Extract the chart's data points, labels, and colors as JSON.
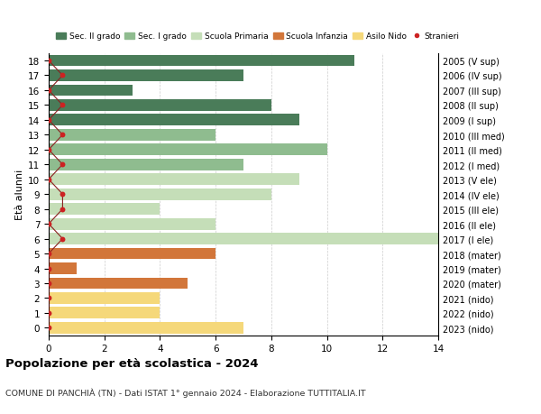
{
  "ages": [
    18,
    17,
    16,
    15,
    14,
    13,
    12,
    11,
    10,
    9,
    8,
    7,
    6,
    5,
    4,
    3,
    2,
    1,
    0
  ],
  "right_labels": [
    "2005 (V sup)",
    "2006 (IV sup)",
    "2007 (III sup)",
    "2008 (II sup)",
    "2009 (I sup)",
    "2010 (III med)",
    "2011 (II med)",
    "2012 (I med)",
    "2013 (V ele)",
    "2014 (IV ele)",
    "2015 (III ele)",
    "2016 (II ele)",
    "2017 (I ele)",
    "2018 (mater)",
    "2019 (mater)",
    "2020 (mater)",
    "2021 (nido)",
    "2022 (nido)",
    "2023 (nido)"
  ],
  "bar_values": [
    11,
    7,
    3,
    8,
    9,
    6,
    10,
    7,
    9,
    8,
    4,
    6,
    14,
    6,
    1,
    5,
    4,
    4,
    7
  ],
  "bar_colors": [
    "#4a7c59",
    "#4a7c59",
    "#4a7c59",
    "#4a7c59",
    "#4a7c59",
    "#8fbc8f",
    "#8fbc8f",
    "#8fbc8f",
    "#c5deb8",
    "#c5deb8",
    "#c5deb8",
    "#c5deb8",
    "#c5deb8",
    "#d2763a",
    "#d2763a",
    "#d2763a",
    "#f5d87a",
    "#f5d87a",
    "#f5d87a"
  ],
  "stranieri_x": [
    0.0,
    0.5,
    0.0,
    0.5,
    0.0,
    0.5,
    0.0,
    0.5,
    0.0,
    0.5,
    0.5,
    0.0,
    0.5,
    0.0,
    0.0,
    0.0,
    0.0,
    0.0,
    0.0
  ],
  "legend_labels": [
    "Sec. II grado",
    "Sec. I grado",
    "Scuola Primaria",
    "Scuola Infanzia",
    "Asilo Nido",
    "Stranieri"
  ],
  "legend_colors": [
    "#4a7c59",
    "#8fbc8f",
    "#c5deb8",
    "#d2763a",
    "#f5d87a",
    "#cc2222"
  ],
  "title": "Popolazione per età scolastica - 2024",
  "subtitle": "COMUNE DI PANCHIÀ (TN) - Dati ISTAT 1° gennaio 2024 - Elaborazione TUTTITALIA.IT",
  "ylabel_left": "Età alunni",
  "xlim": [
    0,
    14
  ],
  "xticks": [
    0,
    2,
    4,
    6,
    8,
    10,
    12,
    14
  ],
  "bg_color": "#ffffff",
  "grid_color": "#cccccc"
}
